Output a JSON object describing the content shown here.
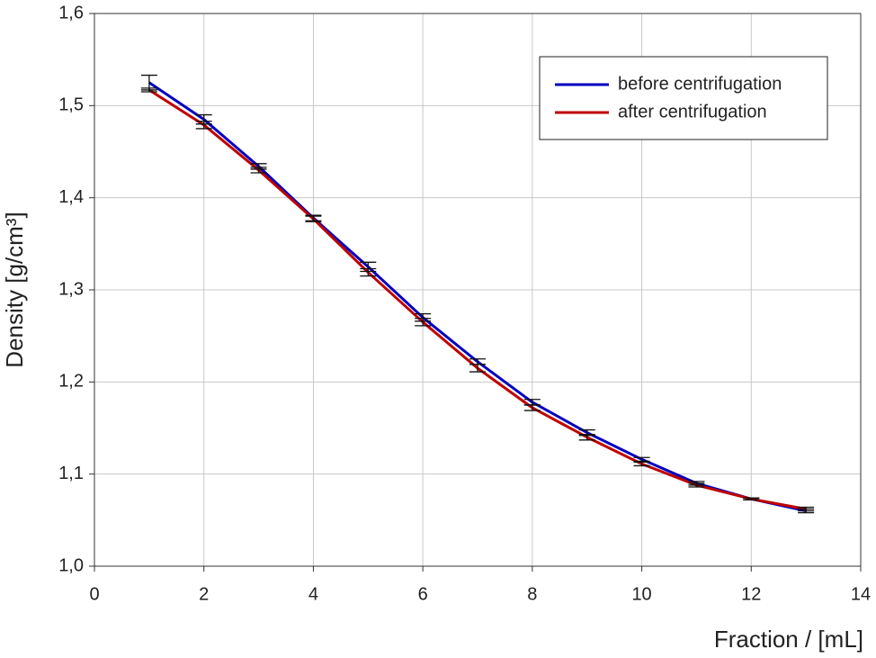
{
  "chart_data": {
    "type": "line",
    "x_label": "Fraction / [mL]",
    "y_label": "Density [g/cm³]",
    "xlim": [
      0,
      14
    ],
    "xticks": [
      0,
      2,
      4,
      6,
      8,
      10,
      12,
      14
    ],
    "ylim": [
      1.0,
      1.6
    ],
    "yticks": [
      {
        "value": 1.0,
        "label": "1,0"
      },
      {
        "value": 1.1,
        "label": "1,1"
      },
      {
        "value": 1.2,
        "label": "1,2"
      },
      {
        "value": 1.3,
        "label": "1,3"
      },
      {
        "value": 1.4,
        "label": "1,4"
      },
      {
        "value": 1.5,
        "label": "1,5"
      },
      {
        "value": 1.6,
        "label": "1,6"
      }
    ],
    "grid": true,
    "legend": "upper right",
    "x": [
      1,
      2,
      3,
      4,
      5,
      6,
      7,
      8,
      9,
      10,
      11,
      12,
      13
    ],
    "series": [
      {
        "name": "before centrifugation",
        "color": "#0000c0",
        "values": [
          1.525,
          1.485,
          1.434,
          1.378,
          1.325,
          1.27,
          1.222,
          1.178,
          1.145,
          1.116,
          1.09,
          1.073,
          1.06
        ],
        "errors": [
          0.008,
          0.005,
          0.003,
          0.003,
          0.005,
          0.004,
          0.003,
          0.003,
          0.003,
          0.002,
          0.002,
          0.001,
          0.002
        ]
      },
      {
        "name": "after centrifugation",
        "color": "#c00000",
        "values": [
          1.517,
          1.479,
          1.43,
          1.377,
          1.319,
          1.265,
          1.215,
          1.172,
          1.14,
          1.111,
          1.088,
          1.073,
          1.062
        ],
        "errors": [
          0.002,
          0.004,
          0.003,
          0.003,
          0.004,
          0.004,
          0.004,
          0.003,
          0.003,
          0.002,
          0.002,
          0.001,
          0.002
        ]
      }
    ]
  }
}
